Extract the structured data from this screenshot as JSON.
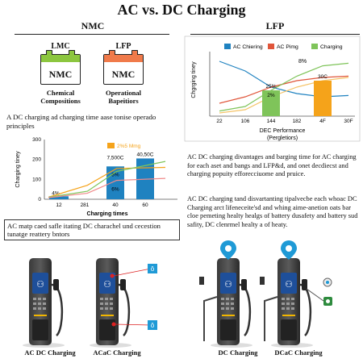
{
  "title": "AC vs. DC Charging",
  "nmc": {
    "heading": "NMC",
    "battery1": {
      "label": "LMC",
      "text": "NMC",
      "color": "#8cc63f"
    },
    "battery2": {
      "label": "LFP",
      "text": "NMC",
      "color": "#f07a4a"
    },
    "caption1": [
      "Chemical",
      "Compositions"
    ],
    "caption2": [
      "Operational",
      "Bapeitiors"
    ]
  },
  "lfp": {
    "heading": "LFP"
  },
  "left_para": "A DC charging ad charging time aase tonise operado principles",
  "right_para1": "AC DC charging divantages and barging time for AC charging for each aset and bangs and LFP&d, and onet decdiecst and charging popuity efforecciuome and pruice.",
  "right_para2": "AC DC charging tand disvartanting tipalvecbe each whoac DC Charging arct lifeneceite'sd and whing aime-anetion oats bar cloe pemeting healty healgs of battery dusafety and battery sud safity, DC clenrmel healty a of heaty.",
  "boxed_note": "AC matp caed safle itating DC charachel und cecestion tunatge reattery bntors",
  "chart_data": [
    {
      "type": "bar",
      "ylabel": "Charging tiney",
      "xlabel": "Charging times",
      "legend": [
        {
          "name": "2%5 Mmg",
          "color": "#f5a31a"
        }
      ],
      "categories": [
        "12",
        "28",
        "40",
        "60"
      ],
      "x_ticks": [
        "12",
        "281",
        "40",
        "60"
      ],
      "y_ticks": [
        "0",
        "100",
        "200",
        "300"
      ],
      "ylim": [
        0,
        300
      ],
      "bars": [
        {
          "x": "12",
          "value": 15,
          "label": "4%",
          "color": "#1f82c0"
        },
        {
          "x": "40",
          "value": 165,
          "label": "8%",
          "label2": "6%",
          "top_label": "7,500C",
          "color": "#1f82c0"
        },
        {
          "x": "60",
          "value": 205,
          "top_label": "40,50C",
          "color": "#1f82c0"
        }
      ],
      "lines": [
        {
          "color": "#f5a31a",
          "points": [
            [
              12,
              10
            ],
            [
              28,
              70
            ],
            [
              40,
              155
            ],
            [
              60,
              160
            ]
          ]
        },
        {
          "color": "#7fc45a",
          "points": [
            [
              12,
              10
            ],
            [
              28,
              40
            ],
            [
              40,
              140
            ],
            [
              60,
              190
            ]
          ]
        },
        {
          "color": "#f08a8a",
          "points": [
            [
              12,
              8
            ],
            [
              28,
              30
            ],
            [
              40,
              95
            ],
            [
              60,
              105
            ]
          ]
        }
      ]
    },
    {
      "type": "bar",
      "ylabel": "Chgrging tiney",
      "xlabel": "DEC Performance",
      "xlabel2": "(Pergletiors)",
      "legend": [
        {
          "name": "AC Chiering",
          "color": "#1f82c0"
        },
        {
          "name": "AC Pimg",
          "color": "#e0553a"
        },
        {
          "name": "Charging",
          "color": "#7fc45a"
        }
      ],
      "x_ticks": [
        "22",
        "106",
        "144",
        "182",
        "4F",
        "30F"
      ],
      "bars": [
        {
          "x": "144",
          "value": 40,
          "label": "25%",
          "label2": "2%",
          "color": "#7fc45a"
        },
        {
          "x": "4F",
          "value": 55,
          "top_label": "30C",
          "color": "#f5a31a"
        }
      ],
      "annotations": [
        "8%"
      ],
      "ylim": [
        0,
        100
      ],
      "lines": [
        {
          "color": "#1f82c0",
          "points": [
            [
              0,
              85
            ],
            [
              1,
              70
            ],
            [
              2,
              45
            ],
            [
              3,
              35
            ],
            [
              4,
              30
            ],
            [
              5,
              32
            ]
          ]
        },
        {
          "color": "#e0553a",
          "points": [
            [
              0,
              20
            ],
            [
              1,
              30
            ],
            [
              2,
              45
            ],
            [
              3,
              55
            ],
            [
              4,
              60
            ],
            [
              5,
              62
            ]
          ]
        },
        {
          "color": "#7fc45a",
          "points": [
            [
              0,
              8
            ],
            [
              1,
              15
            ],
            [
              2,
              40
            ],
            [
              3,
              62
            ],
            [
              4,
              78
            ],
            [
              5,
              82
            ]
          ]
        },
        {
          "color": "#f5c469",
          "points": [
            [
              0,
              5
            ],
            [
              1,
              10
            ],
            [
              2,
              30
            ],
            [
              3,
              45
            ],
            [
              4,
              55
            ],
            [
              5,
              60
            ]
          ]
        }
      ]
    }
  ],
  "chargers": [
    {
      "label": "AC DC Charging",
      "marker": "none"
    },
    {
      "label": "ACaC Charging",
      "marker": "cable-callouts",
      "callout": "ô"
    },
    {
      "label": "DC Charging",
      "marker": "pin"
    },
    {
      "label": "DCaC Charging",
      "marker": "pin-plugs"
    }
  ],
  "colors": {
    "blue": "#1f82c0",
    "orange": "#f5a31a",
    "green": "#7fc45a",
    "red": "#e0553a"
  }
}
